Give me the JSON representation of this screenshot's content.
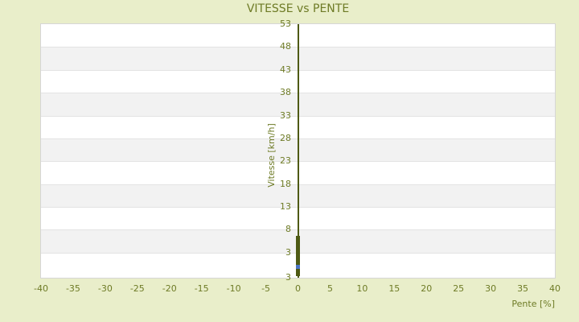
{
  "colors": {
    "page_background": "#e9eeca",
    "label_olive": "#6e7b26",
    "series_dark_olive": "#4e5a14",
    "highlight_blue": "#4a74c4",
    "band_white": "#ffffff",
    "band_gray": "#f2f2f2",
    "band_separator": "#e3e3e3",
    "plot_border": "#d6d6d6"
  },
  "chart_data": {
    "type": "scatter",
    "title": "VITESSE vs PENTE",
    "xlabel": "Pente [%]",
    "ylabel": "Vitesse [km/h]",
    "xlim": [
      -40,
      40
    ],
    "ylim": [
      -2.5,
      53
    ],
    "x_ticks": [
      -40,
      -35,
      -30,
      -25,
      -20,
      -15,
      -10,
      -5,
      0,
      5,
      10,
      15,
      20,
      25,
      30,
      35,
      40
    ],
    "y_ticks": [
      53,
      48,
      43,
      38,
      33,
      28,
      23,
      18,
      13,
      8,
      3
    ],
    "y_axis_bottom_label": "3",
    "grid": "horizontal-alternating-bands",
    "legend": "none",
    "zero_axis_line_at_x": 0,
    "series": [
      {
        "name": "vitesse-points",
        "marker": "square",
        "color": "#4e5a14",
        "points": [
          [
            0,
            6.2
          ],
          [
            0,
            5.5
          ],
          [
            0,
            5.0
          ],
          [
            0,
            4.4
          ],
          [
            0,
            3.9
          ],
          [
            0,
            3.4
          ],
          [
            0,
            3.1
          ],
          [
            0,
            2.9
          ],
          [
            0,
            2.7
          ],
          [
            0,
            2.5
          ],
          [
            0,
            2.3
          ],
          [
            0,
            2.1
          ],
          [
            0,
            1.9
          ],
          [
            0,
            1.7
          ],
          [
            0,
            1.5
          ],
          [
            0,
            1.3
          ],
          [
            0,
            1.1
          ],
          [
            0,
            0.9
          ],
          [
            0,
            0.7
          ],
          [
            0,
            0.5
          ],
          [
            0,
            0.3
          ],
          [
            0,
            0.1
          ],
          [
            0,
            -0.7
          ],
          [
            0,
            -1.1
          ],
          [
            0,
            -1.4
          ],
          [
            0,
            -1.7
          ]
        ]
      },
      {
        "name": "highlight-point",
        "marker": "square",
        "color": "#4a74c4",
        "points": [
          [
            0,
            -0.2
          ]
        ]
      }
    ]
  }
}
